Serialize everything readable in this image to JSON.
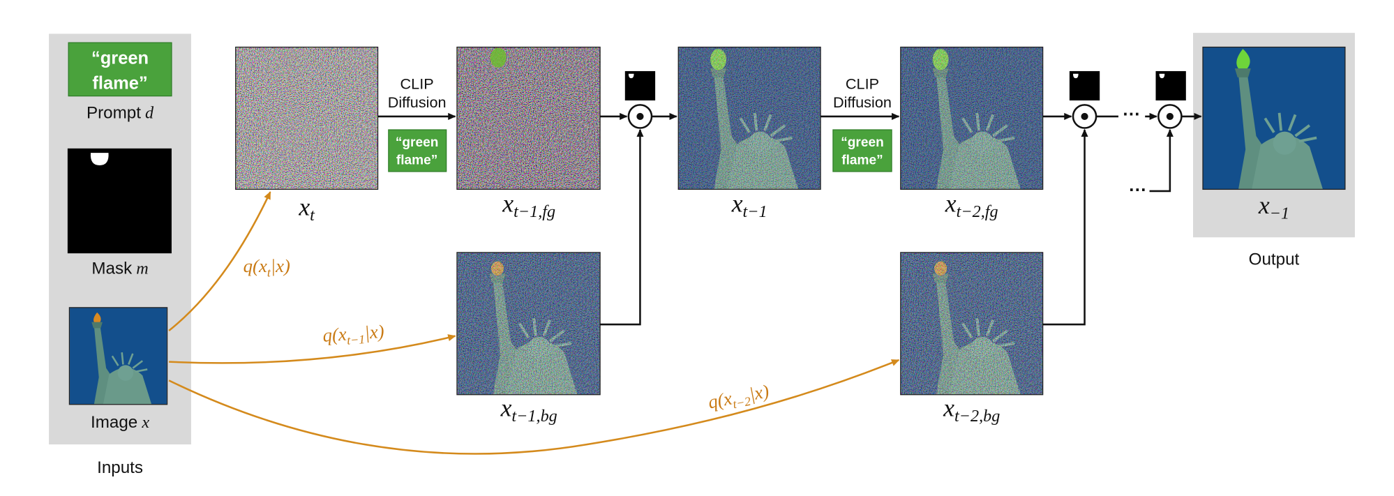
{
  "inputs": {
    "title": "Inputs",
    "prompt": {
      "lines": [
        "“green",
        "flame”"
      ],
      "label": "Prompt",
      "var": "d"
    },
    "mask": {
      "label": "Mask",
      "var": "m"
    },
    "image": {
      "label": "Image",
      "var": "x"
    }
  },
  "steps": [
    {
      "clip": [
        "CLIP",
        "Diffusion"
      ],
      "prompt": [
        "“green",
        "flame”"
      ]
    },
    {
      "clip": [
        "CLIP",
        "Diffusion"
      ],
      "prompt": [
        "“green",
        "flame”"
      ]
    }
  ],
  "images": {
    "x_t": {
      "main": "x",
      "sub": "t"
    },
    "x_t1_fg": {
      "main": "x",
      "sub": "t−1,fg"
    },
    "x_t1": {
      "main": "x",
      "sub": "t−1"
    },
    "x_t2_fg": {
      "main": "x",
      "sub": "t−2,fg"
    },
    "x_t1_bg": {
      "main": "x",
      "sub": "t−1,bg"
    },
    "x_t2_bg": {
      "main": "x",
      "sub": "t−2,bg"
    },
    "x_out": {
      "main": "x",
      "sub": "−1"
    }
  },
  "edges": [
    {
      "pre": "q(x",
      "sub": "t",
      "post": "|x)"
    },
    {
      "pre": "q(x",
      "sub": "t−1",
      "post": "|x)"
    },
    {
      "pre": "q(x",
      "sub": "t−2",
      "post": "|x)"
    }
  ],
  "ellipsis": [
    "···",
    "···"
  ],
  "output": "Output"
}
